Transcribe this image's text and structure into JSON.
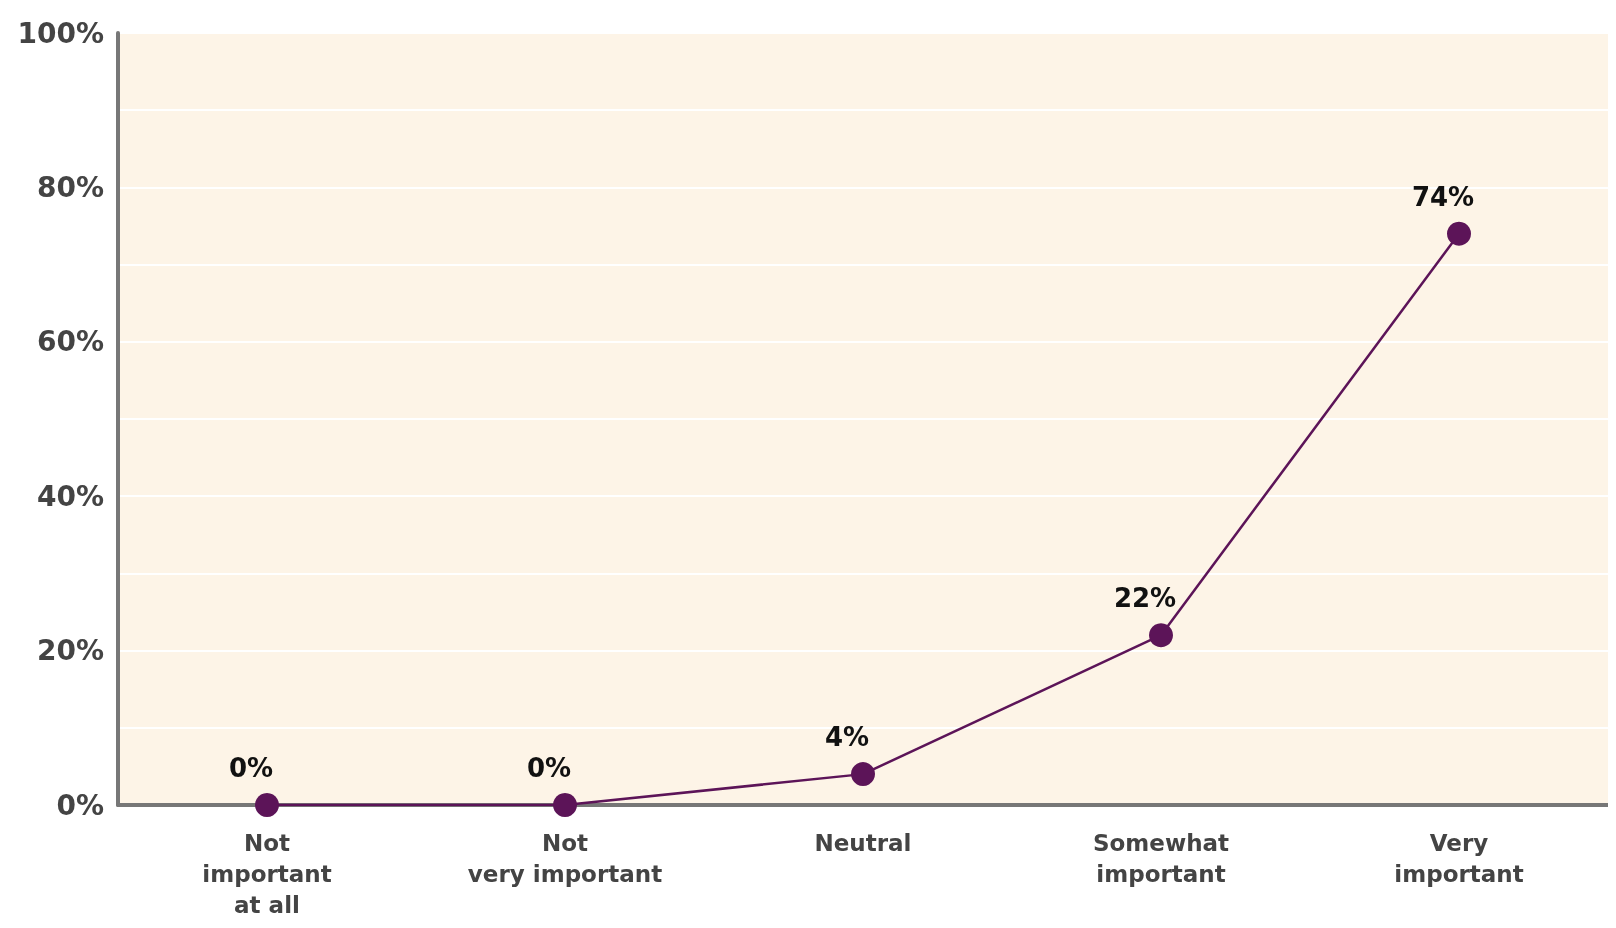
{
  "chart_data": {
    "type": "line",
    "categories": [
      "Not\nimportant\nat all",
      "Not\nvery important",
      "Neutral",
      "Somewhat\nimportant",
      "Very\nimportant"
    ],
    "series": [
      {
        "color": "#5c1458",
        "values": [
          0,
          0,
          4,
          22,
          74
        ],
        "value_labels": [
          "0%",
          "0%",
          "4%",
          "22%",
          "74%"
        ]
      }
    ],
    "ylim": [
      0,
      100
    ],
    "yticks": [
      {
        "value": 0,
        "label": "0%"
      },
      {
        "value": 10,
        "label": null
      },
      {
        "value": 20,
        "label": "20%"
      },
      {
        "value": 30,
        "label": null
      },
      {
        "value": 40,
        "label": "40%"
      },
      {
        "value": 50,
        "label": null
      },
      {
        "value": 60,
        "label": "60%"
      },
      {
        "value": 70,
        "label": null
      },
      {
        "value": 80,
        "label": "80%"
      },
      {
        "value": 90,
        "label": null
      },
      {
        "value": 100,
        "label": "100%"
      }
    ],
    "grid": "y",
    "marker": "circle",
    "line_style": "solid"
  }
}
